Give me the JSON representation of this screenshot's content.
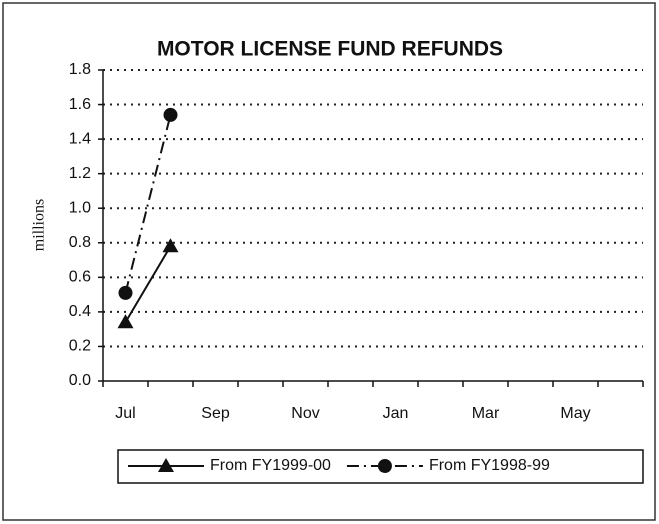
{
  "chart_data": {
    "type": "line",
    "title": "MOTOR LICENSE FUND REFUNDS",
    "y_label": "millions",
    "categories": [
      "Jul",
      null,
      "Sep",
      null,
      "Nov",
      null,
      "Jan",
      null,
      "Mar",
      null,
      "May",
      null
    ],
    "series": [
      {
        "name": "From FY1999-00",
        "color": "#111111",
        "marker": "triangle",
        "line_style": "solid",
        "values": [
          0.34,
          0.78,
          null,
          null,
          null,
          null,
          null,
          null,
          null,
          null,
          null,
          null
        ]
      },
      {
        "name": "From FY1998-99",
        "color": "#111111",
        "marker": "circle",
        "line_style": "dash-dot",
        "values": [
          0.51,
          1.54,
          null,
          null,
          null,
          null,
          null,
          null,
          null,
          null,
          null,
          null
        ]
      }
    ],
    "ylim": [
      0,
      1.8
    ],
    "yticks": [
      {
        "value": 0,
        "label": "0.0"
      },
      0.2,
      0.4,
      0.6,
      0.8,
      {
        "value": 1,
        "label": "1.0"
      },
      1.2,
      1.4,
      1.6,
      1.8
    ],
    "grid": true,
    "legend": "bottom"
  }
}
